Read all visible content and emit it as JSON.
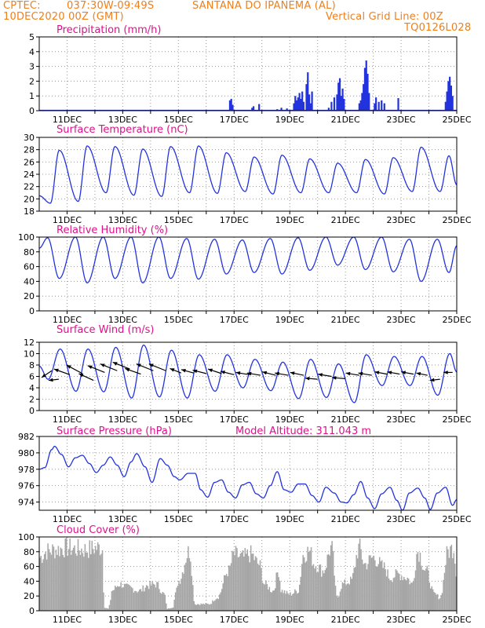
{
  "header": {
    "source": "CPTEC:",
    "coords": "037:30W-09:49S",
    "location": "SANTANA DO IPANEMA (AL)",
    "init_time": "10DEC2020 00Z (GMT)",
    "grid_note": "Vertical Grid Line: 00Z",
    "model_id": "TQ0126L028",
    "altitude_label": "Model Altitude: 311.043 m"
  },
  "colors": {
    "header_text": "#f07f1a",
    "panel_title": "#e0108c",
    "line": "#2233dd",
    "bar": "#2233dd",
    "cloud": "#a6a6a6",
    "arrows": "#000000"
  },
  "chart_data": [
    {
      "type": "bar",
      "title": "Precipitation (mm/h)",
      "xlabel": "",
      "ylabel": "",
      "x_ticks": [
        "11DEC",
        "13DEC",
        "15DEC",
        "17DEC",
        "19DEC",
        "21DEC",
        "23DEC",
        "25DEC"
      ],
      "x_unit": "days since 10DEC2020 00Z",
      "xlim": [
        0,
        15
      ],
      "ylim": [
        0,
        5
      ],
      "yticks": [
        0,
        1,
        2,
        3,
        4,
        5
      ],
      "grid": "dotted",
      "events": [
        [
          6.85,
          0.7
        ],
        [
          6.9,
          0.8
        ],
        [
          6.95,
          0.4
        ],
        [
          7.65,
          0.2
        ],
        [
          7.7,
          0.3
        ],
        [
          7.9,
          0.45
        ],
        [
          8.55,
          0.1
        ],
        [
          8.7,
          0.2
        ],
        [
          8.9,
          0.15
        ],
        [
          9.15,
          0.5
        ],
        [
          9.2,
          1.0
        ],
        [
          9.25,
          0.7
        ],
        [
          9.3,
          0.9
        ],
        [
          9.35,
          1.2
        ],
        [
          9.4,
          0.8
        ],
        [
          9.45,
          1.3
        ],
        [
          9.5,
          0.6
        ],
        [
          9.6,
          1.8
        ],
        [
          9.65,
          2.6
        ],
        [
          9.7,
          1.1
        ],
        [
          9.75,
          0.5
        ],
        [
          9.8,
          1.3
        ],
        [
          10.4,
          0.2
        ],
        [
          10.5,
          0.6
        ],
        [
          10.6,
          0.9
        ],
        [
          10.7,
          1.1
        ],
        [
          10.75,
          1.9
        ],
        [
          10.8,
          2.2
        ],
        [
          10.85,
          1.0
        ],
        [
          10.9,
          1.5
        ],
        [
          10.95,
          0.8
        ],
        [
          11.5,
          0.5
        ],
        [
          11.55,
          0.7
        ],
        [
          11.6,
          1.2
        ],
        [
          11.65,
          1.8
        ],
        [
          11.7,
          2.9
        ],
        [
          11.75,
          3.4
        ],
        [
          11.8,
          2.5
        ],
        [
          11.85,
          1.2
        ],
        [
          12.05,
          0.5
        ],
        [
          12.1,
          0.9
        ],
        [
          12.2,
          0.6
        ],
        [
          12.3,
          0.7
        ],
        [
          12.4,
          0.5
        ],
        [
          12.9,
          0.85
        ],
        [
          14.6,
          0.6
        ],
        [
          14.65,
          1.3
        ],
        [
          14.7,
          2.0
        ],
        [
          14.75,
          2.3
        ],
        [
          14.8,
          1.7
        ],
        [
          14.85,
          1.0
        ]
      ]
    },
    {
      "type": "line",
      "title": "Surface Temperature (nC)",
      "xlabel": "",
      "ylabel": "",
      "x_ticks": [
        "11DEC",
        "13DEC",
        "15DEC",
        "17DEC",
        "19DEC",
        "21DEC",
        "23DEC",
        "25DEC"
      ],
      "x_unit": "days since 10DEC2020 00Z",
      "xlim": [
        0,
        15
      ],
      "ylim": [
        18,
        30
      ],
      "yticks": [
        18,
        20,
        22,
        24,
        26,
        28,
        30
      ],
      "grid": "dotted",
      "daily_min": [
        19.3,
        19.6,
        21.0,
        20.6,
        20.4,
        21.0,
        20.9,
        21.2,
        20.8,
        21.0,
        21.0,
        21.0,
        20.8,
        21.2,
        21.2
      ],
      "daily_max": [
        27.9,
        28.6,
        28.5,
        28.1,
        28.5,
        28.6,
        27.5,
        26.8,
        27.1,
        26.5,
        25.8,
        26.4,
        26.7,
        28.4,
        27.0
      ],
      "end_value": 22.3
    },
    {
      "type": "line",
      "title": "Relative Humidity (%)",
      "xlabel": "",
      "ylabel": "",
      "x_ticks": [
        "11DEC",
        "13DEC",
        "15DEC",
        "17DEC",
        "19DEC",
        "21DEC",
        "23DEC",
        "25DEC"
      ],
      "x_unit": "days since 10DEC2020 00Z",
      "xlim": [
        0,
        15
      ],
      "ylim": [
        0,
        100
      ],
      "yticks": [
        0,
        20,
        40,
        60,
        80,
        100
      ],
      "grid": "dotted",
      "daily_max": [
        99,
        100,
        100,
        100,
        100,
        98,
        97,
        96,
        98,
        99,
        100,
        100,
        100,
        97,
        97
      ],
      "daily_min": [
        44,
        38,
        44,
        38,
        44,
        43,
        50,
        52,
        50,
        55,
        62,
        56,
        53,
        40,
        52
      ],
      "end_value": 88
    },
    {
      "type": "line",
      "title": "Surface Wind (m/s)",
      "xlabel": "",
      "ylabel": "",
      "x_ticks": [
        "11DEC",
        "13DEC",
        "15DEC",
        "17DEC",
        "19DEC",
        "21DEC",
        "23DEC",
        "25DEC"
      ],
      "x_unit": "days since 10DEC2020 00Z",
      "xlim": [
        0,
        15
      ],
      "ylim": [
        0,
        12
      ],
      "yticks": [
        0,
        2,
        4,
        6,
        8,
        10,
        12
      ],
      "grid": "dotted",
      "daily_max": [
        10.8,
        10.8,
        11.1,
        11.5,
        10.6,
        9.8,
        9.8,
        9.0,
        8.5,
        9.0,
        8.2,
        9.8,
        9.5,
        9.5,
        10.0
      ],
      "daily_min": [
        5.5,
        3.4,
        3.3,
        2.2,
        2.4,
        2.2,
        3.4,
        4.0,
        3.5,
        2.1,
        2.3,
        1.4,
        4.4,
        4.4,
        2.7
      ],
      "start_value": 7.8,
      "end_value": 6.8,
      "vectors": [
        [
          0.45,
          7.0,
          -0.45,
          -0.6
        ],
        [
          0.7,
          5.5,
          -0.45,
          -0.1
        ],
        [
          1.1,
          6.3,
          -0.7,
          0.5
        ],
        [
          1.55,
          6.5,
          -0.7,
          0.75
        ],
        [
          1.95,
          5.3,
          -0.65,
          0.6
        ],
        [
          2.35,
          6.7,
          -0.75,
          0.6
        ],
        [
          2.8,
          7.0,
          -0.75,
          0.6
        ],
        [
          3.25,
          7.3,
          -0.75,
          0.6
        ],
        [
          3.65,
          6.4,
          -0.7,
          0.5
        ],
        [
          4.1,
          7.0,
          -0.75,
          0.6
        ],
        [
          4.55,
          7.0,
          -0.75,
          0.6
        ],
        [
          5.1,
          6.6,
          -0.5,
          0.4
        ],
        [
          5.55,
          6.6,
          -0.55,
          0.3
        ],
        [
          6.0,
          6.5,
          -0.6,
          0.3
        ],
        [
          6.55,
          6.5,
          -0.6,
          0.4
        ],
        [
          7.0,
          6.3,
          -0.6,
          0.3
        ],
        [
          7.55,
          6.3,
          -0.6,
          0.2
        ],
        [
          7.95,
          6.2,
          -0.6,
          0.2
        ],
        [
          8.5,
          6.2,
          -0.6,
          0.3
        ],
        [
          8.95,
          6.2,
          -0.6,
          0.2
        ],
        [
          9.5,
          6.2,
          -0.6,
          0.25
        ],
        [
          10.0,
          5.5,
          -0.55,
          0.1
        ],
        [
          10.5,
          6.0,
          -0.6,
          0.2
        ],
        [
          11.0,
          5.6,
          -0.6,
          0.1
        ],
        [
          11.5,
          6.2,
          -0.6,
          0.2
        ],
        [
          11.95,
          6.2,
          -0.6,
          0.2
        ],
        [
          12.5,
          6.4,
          -0.55,
          0.2
        ],
        [
          12.95,
          6.4,
          -0.55,
          0.2
        ],
        [
          13.45,
          6.4,
          -0.55,
          0.2
        ],
        [
          13.95,
          6.2,
          -0.5,
          0.2
        ],
        [
          14.4,
          5.5,
          -0.45,
          -0.1
        ],
        [
          14.85,
          6.7,
          -0.4,
          0.0
        ]
      ]
    },
    {
      "type": "line",
      "title": "Surface Pressure (hPa)",
      "xlabel": "",
      "ylabel": "",
      "x_ticks": [
        "11DEC",
        "13DEC",
        "15DEC",
        "17DEC",
        "19DEC",
        "21DEC",
        "23DEC",
        "25DEC"
      ],
      "x_unit": "days since 10DEC2020 00Z",
      "xlim": [
        0,
        15
      ],
      "ylim": [
        973,
        982
      ],
      "yticks": [
        974,
        976,
        978,
        980,
        982
      ],
      "grid": "dotted",
      "knots": [
        [
          0,
          978
        ],
        [
          0.2,
          978.2
        ],
        [
          0.45,
          980.4
        ],
        [
          0.55,
          980.8
        ],
        [
          0.8,
          979.8
        ],
        [
          1.05,
          978.3
        ],
        [
          1.3,
          979.4
        ],
        [
          1.55,
          979.7
        ],
        [
          1.8,
          978.7
        ],
        [
          2.05,
          977.6
        ],
        [
          2.3,
          978.5
        ],
        [
          2.55,
          979.5
        ],
        [
          2.8,
          978.5
        ],
        [
          3.05,
          977.1
        ],
        [
          3.3,
          978.9
        ],
        [
          3.5,
          979.9
        ],
        [
          3.8,
          978.3
        ],
        [
          4.05,
          976.4
        ],
        [
          4.35,
          979.3
        ],
        [
          4.6,
          978.5
        ],
        [
          4.85,
          977.1
        ],
        [
          5.05,
          976.7
        ],
        [
          5.35,
          977.5
        ],
        [
          5.6,
          977.5
        ],
        [
          5.8,
          975.5
        ],
        [
          6.05,
          974.6
        ],
        [
          6.3,
          976.4
        ],
        [
          6.55,
          976.7
        ],
        [
          6.8,
          975.2
        ],
        [
          7.05,
          974.5
        ],
        [
          7.3,
          976.1
        ],
        [
          7.55,
          976.4
        ],
        [
          7.8,
          975.0
        ],
        [
          8.05,
          974.5
        ],
        [
          8.3,
          976.0
        ],
        [
          8.55,
          977.7
        ],
        [
          8.8,
          975.5
        ],
        [
          9.05,
          975.2
        ],
        [
          9.3,
          976.2
        ],
        [
          9.55,
          976.2
        ],
        [
          9.8,
          974.8
        ],
        [
          10.05,
          974.0
        ],
        [
          10.3,
          975.8
        ],
        [
          10.6,
          975.1
        ],
        [
          10.85,
          974.0
        ],
        [
          11.05,
          973.9
        ],
        [
          11.3,
          974.9
        ],
        [
          11.55,
          976.5
        ],
        [
          11.8,
          974.5
        ],
        [
          12.05,
          973.2
        ],
        [
          12.3,
          975.0
        ],
        [
          12.6,
          975.8
        ],
        [
          12.85,
          974.2
        ],
        [
          13.05,
          973.0
        ],
        [
          13.3,
          975.1
        ],
        [
          13.6,
          975.7
        ],
        [
          13.85,
          974.5
        ],
        [
          14.05,
          973.1
        ],
        [
          14.3,
          975.1
        ],
        [
          14.6,
          975.8
        ],
        [
          14.85,
          973.6
        ],
        [
          15,
          974.3
        ]
      ]
    },
    {
      "type": "bar",
      "title": "Cloud Cover (%)",
      "xlabel": "",
      "ylabel": "",
      "x_ticks": [
        "11DEC",
        "13DEC",
        "15DEC",
        "17DEC",
        "19DEC",
        "21DEC",
        "23DEC",
        "25DEC"
      ],
      "x_unit": "days since 10DEC2020 00Z",
      "xlim": [
        0,
        15
      ],
      "ylim": [
        0,
        100
      ],
      "yticks": [
        0,
        20,
        40,
        60,
        80,
        100
      ],
      "grid": "dotted",
      "envelope": [
        [
          0,
          80
        ],
        [
          0.3,
          90
        ],
        [
          0.6,
          92
        ],
        [
          1.0,
          95
        ],
        [
          1.3,
          93
        ],
        [
          1.6,
          92
        ],
        [
          2.2,
          95
        ],
        [
          2.3,
          92
        ],
        [
          2.32,
          5
        ],
        [
          2.5,
          3
        ],
        [
          2.55,
          15
        ],
        [
          2.6,
          30
        ],
        [
          2.9,
          40
        ],
        [
          3.2,
          35
        ],
        [
          3.6,
          30
        ],
        [
          3.9,
          38
        ],
        [
          4.2,
          40
        ],
        [
          4.5,
          25
        ],
        [
          4.6,
          3
        ],
        [
          4.8,
          5
        ],
        [
          4.9,
          25
        ],
        [
          5.0,
          45
        ],
        [
          5.4,
          90
        ],
        [
          5.6,
          10
        ],
        [
          5.9,
          10
        ],
        [
          6.1,
          10
        ],
        [
          6.4,
          20
        ],
        [
          6.8,
          60
        ],
        [
          7.0,
          85
        ],
        [
          7.3,
          80
        ],
        [
          7.6,
          85
        ],
        [
          7.9,
          70
        ],
        [
          8.1,
          40
        ],
        [
          8.4,
          30
        ],
        [
          8.6,
          60
        ],
        [
          8.7,
          30
        ],
        [
          9.0,
          25
        ],
        [
          9.3,
          30
        ],
        [
          9.5,
          85
        ],
        [
          9.7,
          90
        ],
        [
          9.9,
          70
        ],
        [
          10.2,
          60
        ],
        [
          10.5,
          95
        ],
        [
          10.7,
          20
        ],
        [
          10.9,
          40
        ],
        [
          11.2,
          45
        ],
        [
          11.5,
          95
        ],
        [
          11.7,
          70
        ],
        [
          12.0,
          80
        ],
        [
          12.4,
          65
        ],
        [
          12.6,
          50
        ],
        [
          12.9,
          55
        ],
        [
          13.2,
          50
        ],
        [
          13.4,
          40
        ],
        [
          13.6,
          90
        ],
        [
          13.9,
          60
        ],
        [
          14.2,
          25
        ],
        [
          14.4,
          20
        ],
        [
          14.7,
          90
        ],
        [
          14.9,
          95
        ],
        [
          15,
          50
        ]
      ]
    }
  ]
}
